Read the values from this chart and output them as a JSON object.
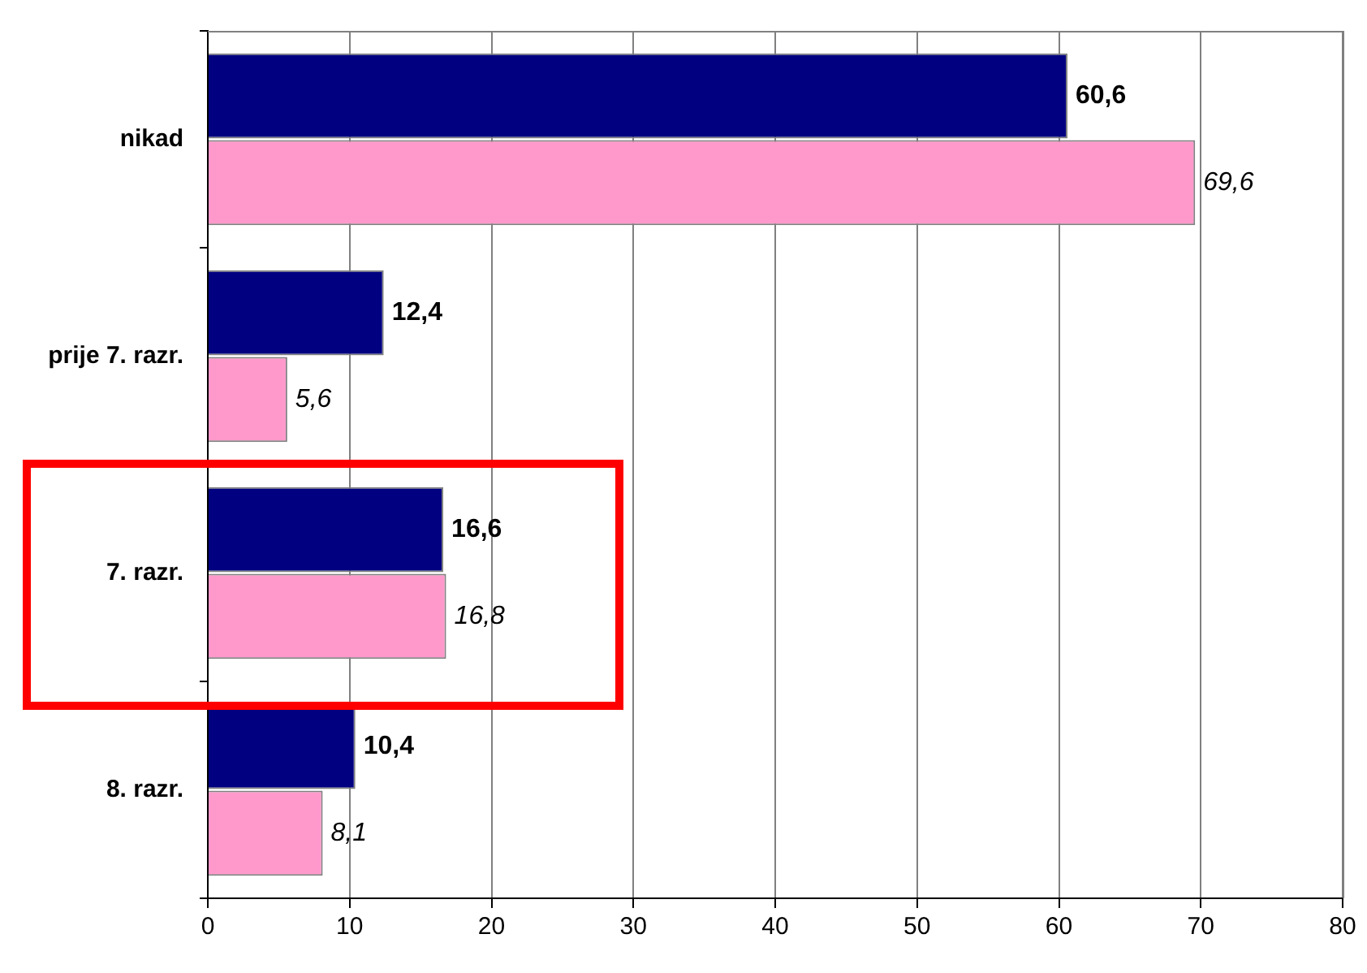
{
  "chart_data": {
    "type": "bar",
    "orientation": "horizontal",
    "categories": [
      "nikad",
      "prije 7. razr.",
      "7. razr.",
      "8. razr."
    ],
    "series": [
      {
        "color": "#000080",
        "values": [
          60.6,
          12.4,
          16.6,
          10.4
        ],
        "value_labels": [
          "60,6",
          "12,4",
          "16,6",
          "10,4"
        ]
      },
      {
        "color": "#ff99cc",
        "values": [
          69.6,
          5.6,
          16.8,
          8.1
        ],
        "value_labels": [
          "69,6",
          "5,6",
          "16,8",
          "8,1"
        ]
      }
    ],
    "xlim": [
      0,
      80
    ],
    "xticks": [
      0,
      10,
      20,
      30,
      40,
      50,
      60,
      70,
      80
    ],
    "grid": "x",
    "legend": false
  }
}
